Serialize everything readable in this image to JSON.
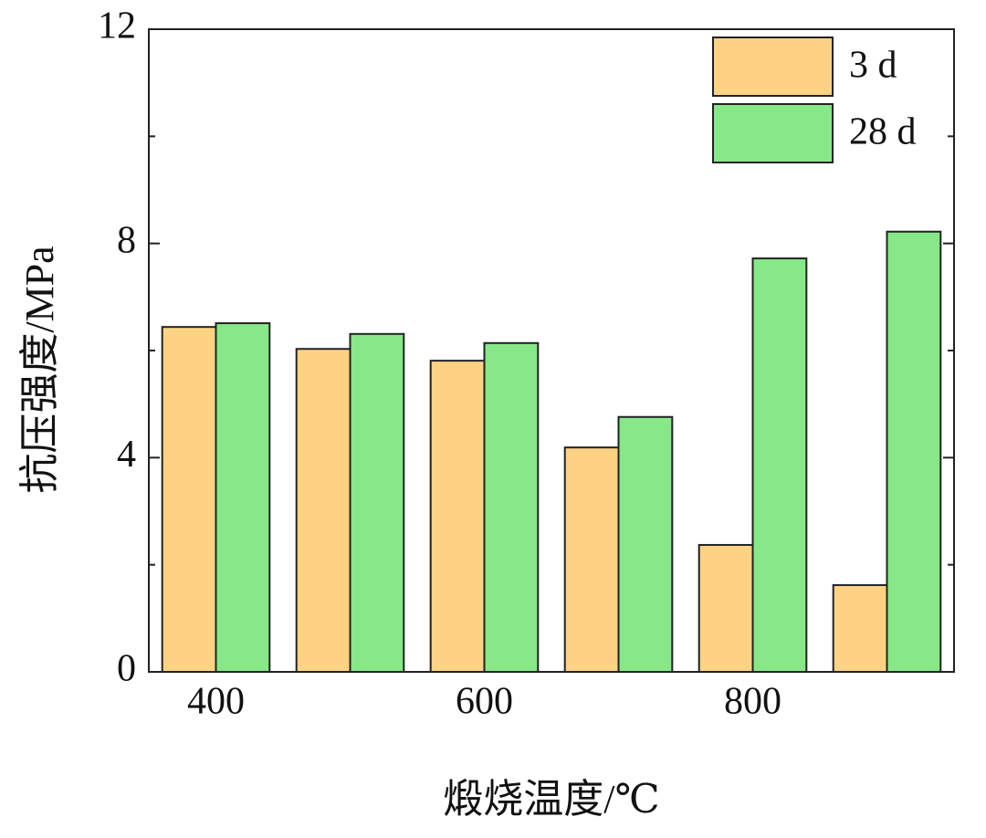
{
  "chart_data": {
    "type": "bar",
    "x_label": "煅烧温度/℃",
    "y_label": "抗压强度/MPa",
    "categories": [
      "400",
      null,
      "600",
      null,
      "800",
      null
    ],
    "series": [
      {
        "name": "3 d",
        "color": "#fdd383",
        "values": [
          6.44,
          6.03,
          5.81,
          4.19,
          2.37,
          1.62
        ]
      },
      {
        "name": "28 d",
        "color": "#86e887",
        "values": [
          6.51,
          6.31,
          6.14,
          4.76,
          7.72,
          8.22
        ]
      }
    ],
    "ylim": [
      0,
      12
    ],
    "yticks": [
      0,
      4,
      8,
      12
    ],
    "legend": "upper right"
  }
}
